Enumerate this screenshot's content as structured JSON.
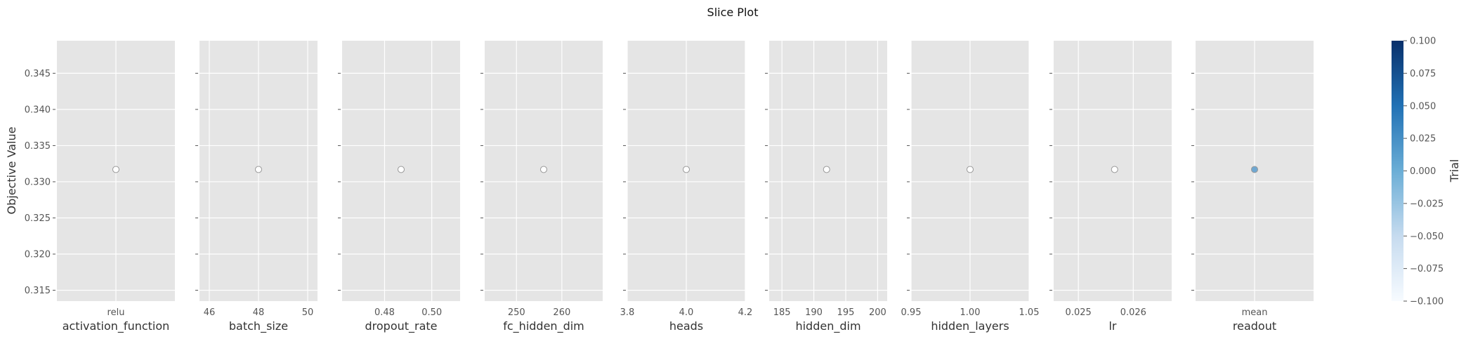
{
  "chart_data": {
    "type": "scatter",
    "title": "Slice Plot",
    "ylabel": "Objective Value",
    "ylim": [
      0.3135,
      0.3495
    ],
    "yticks": [
      "0.315",
      "0.320",
      "0.325",
      "0.330",
      "0.335",
      "0.340",
      "0.345"
    ],
    "ytick_values": [
      0.315,
      0.32,
      0.325,
      0.33,
      0.335,
      0.34,
      0.345
    ],
    "grid": true,
    "point_y": 0.3317,
    "panels": [
      {
        "xlabel": "activation_function",
        "categorical": true,
        "xticks": [
          "relu"
        ],
        "x": "relu"
      },
      {
        "xlabel": "batch_size",
        "xlim": [
          45.6,
          50.4
        ],
        "xticks": [
          "46",
          "48",
          "50"
        ],
        "xtick_values": [
          46,
          48,
          50
        ],
        "x": 48,
        "y": 0.3317
      },
      {
        "xlabel": "dropout_rate",
        "xlim": [
          0.462,
          0.512
        ],
        "xticks": [
          "0.48",
          "0.50"
        ],
        "xtick_values": [
          0.48,
          0.5
        ],
        "x": 0.487,
        "y": 0.3317
      },
      {
        "xlabel": "fc_hidden_dim",
        "xlim": [
          243,
          269
        ],
        "xticks": [
          "250",
          "260"
        ],
        "xtick_values": [
          250,
          260
        ],
        "x": 256,
        "y": 0.3317
      },
      {
        "xlabel": "heads",
        "xlim": [
          3.8,
          4.2
        ],
        "xticks": [
          "3.8",
          "4.0",
          "4.2"
        ],
        "xtick_values": [
          3.8,
          4.0,
          4.2
        ],
        "x": 4.0,
        "y": 0.3317
      },
      {
        "xlabel": "hidden_dim",
        "xlim": [
          183,
          201.5
        ],
        "xticks": [
          "185",
          "190",
          "195",
          "200"
        ],
        "xtick_values": [
          185,
          190,
          195,
          200
        ],
        "x": 192,
        "y": 0.3317
      },
      {
        "xlabel": "hidden_layers",
        "xlim": [
          0.95,
          1.05
        ],
        "xticks": [
          "0.95",
          "1.00",
          "1.05"
        ],
        "xtick_values": [
          0.95,
          1.0,
          1.05
        ],
        "x": 1.0,
        "y": 0.3317
      },
      {
        "xlabel": "lr",
        "xlim": [
          0.02455,
          0.0267
        ],
        "xticks": [
          "0.025",
          "0.026"
        ],
        "xtick_values": [
          0.025,
          0.026
        ],
        "x": 0.02566,
        "y": 0.3317
      },
      {
        "xlabel": "readout",
        "categorical": true,
        "xticks": [
          "mean"
        ],
        "x": "mean",
        "y": 0.3317
      }
    ],
    "colorbar": {
      "label": "Trial",
      "range": [
        -0.1,
        0.1
      ],
      "ticks": [
        "0.100",
        "0.075",
        "0.050",
        "0.025",
        "0.000",
        "−0.025",
        "−0.050",
        "−0.075",
        "−0.100"
      ],
      "tick_values": [
        0.1,
        0.075,
        0.05,
        0.025,
        0.0,
        -0.025,
        -0.05,
        -0.075,
        -0.1
      ],
      "colormap": [
        "#f7fbff",
        "#c6dbef",
        "#6baed6",
        "#2171b5",
        "#08306b"
      ]
    },
    "colors": {
      "panel_bg": "#e5e5e5",
      "grid": "#ffffff",
      "point_hollow_fill": "#ffffff",
      "point_edge": "#999999",
      "point_filled": "#6fa8d2"
    }
  }
}
